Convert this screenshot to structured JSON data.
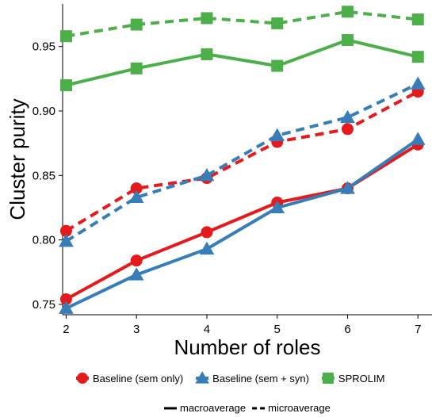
{
  "chart_data": {
    "type": "line",
    "title": "",
    "xlabel": "Number of roles",
    "ylabel": "Cluster purity",
    "x": [
      2,
      3,
      4,
      5,
      6,
      7
    ],
    "x_ticks": [
      "2",
      "3",
      "4",
      "5",
      "6",
      "7"
    ],
    "y_ticks": [
      "0.75",
      "0.80",
      "0.85",
      "0.90",
      "0.95"
    ],
    "xlim": [
      1.95,
      7.2
    ],
    "ylim": [
      0.742,
      0.983
    ],
    "grid": false,
    "legend_position": "bottom",
    "series": [
      {
        "name": "Baseline (sem only)",
        "marker": "circle",
        "color": "#e41a1c",
        "style": "solid",
        "values": [
          0.754,
          0.784,
          0.806,
          0.829,
          0.84,
          0.874
        ]
      },
      {
        "name": "Baseline (sem only)",
        "marker": "circle",
        "color": "#e41a1c",
        "style": "dashed",
        "values": [
          0.807,
          0.84,
          0.848,
          0.876,
          0.886,
          0.915
        ]
      },
      {
        "name": "Baseline (sem + syn)",
        "marker": "triangle",
        "color": "#377eb8",
        "style": "solid",
        "values": [
          0.747,
          0.773,
          0.793,
          0.825,
          0.84,
          0.878
        ]
      },
      {
        "name": "Baseline (sem + syn)",
        "marker": "triangle",
        "color": "#377eb8",
        "style": "dashed",
        "values": [
          0.799,
          0.833,
          0.85,
          0.881,
          0.895,
          0.921
        ]
      },
      {
        "name": "SPROLIM",
        "marker": "square",
        "color": "#4daf4a",
        "style": "solid",
        "values": [
          0.92,
          0.933,
          0.944,
          0.935,
          0.955,
          0.942
        ]
      },
      {
        "name": "SPROLIM",
        "marker": "square",
        "color": "#4daf4a",
        "style": "dashed",
        "values": [
          0.958,
          0.967,
          0.972,
          0.968,
          0.977,
          0.971
        ]
      }
    ],
    "legend_series": [
      {
        "label": "Baseline (sem only)",
        "marker": "circle",
        "color": "#e41a1c"
      },
      {
        "label": "Baseline (sem + syn)",
        "marker": "triangle",
        "color": "#377eb8"
      },
      {
        "label": "SPROLIM",
        "marker": "square",
        "color": "#4daf4a"
      }
    ],
    "legend_styles": [
      {
        "label": "macroaverage",
        "style": "solid"
      },
      {
        "label": "microaverage",
        "style": "dashed"
      }
    ]
  }
}
